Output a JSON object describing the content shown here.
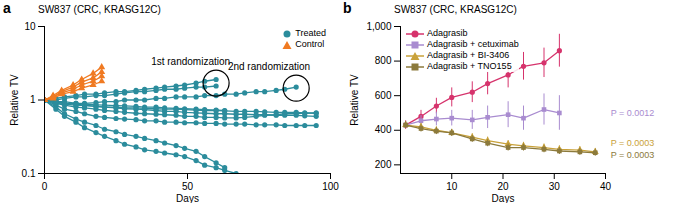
{
  "chart_data": [
    {
      "type": "line",
      "panel": "a",
      "title": "SW837 (CRC, KRASG12C)",
      "x_label": "Days",
      "y_label": "Relative TV",
      "log": "y",
      "legend": "top-right",
      "xlim": [
        0,
        100
      ],
      "xticks": [
        0,
        50,
        100
      ],
      "ylim": [
        0.1,
        10
      ],
      "yticks": [
        0.1,
        1,
        10
      ],
      "series": [
        {
          "name": "Treated",
          "color": "#2b8c9c",
          "marker": "circle",
          "x": [
            0,
            4,
            7,
            11,
            14,
            18,
            21,
            25,
            28,
            32,
            35,
            39,
            42,
            46,
            49,
            53,
            56,
            60
          ],
          "values": [
            1,
            1.05,
            1.1,
            1.15,
            1.2,
            1.2,
            1.25,
            1.3,
            1.3,
            1.35,
            1.4,
            1.45,
            1.5,
            1.55,
            1.6,
            1.7,
            1.8,
            1.9
          ]
        },
        {
          "name": "Treated",
          "color": "#2b8c9c",
          "marker": "circle",
          "x": [
            0,
            4,
            7,
            11,
            14,
            18,
            21,
            25,
            28,
            32,
            35,
            39,
            42,
            46,
            49,
            53,
            56,
            60
          ],
          "values": [
            1,
            1,
            1.05,
            1.1,
            1.1,
            1.15,
            1.15,
            1.2,
            1.25,
            1.3,
            1.3,
            1.35,
            1.4,
            1.4,
            1.45,
            1.5,
            1.5,
            1.55
          ]
        },
        {
          "name": "Treated",
          "color": "#2b8c9c",
          "marker": "circle",
          "x": [
            0,
            4,
            7,
            11,
            14,
            18,
            21,
            25,
            28,
            32,
            35,
            39,
            42,
            46,
            49,
            53,
            56,
            60,
            63,
            67,
            70,
            74,
            77,
            81,
            84,
            88
          ],
          "values": [
            1,
            0.95,
            0.95,
            0.9,
            0.9,
            0.92,
            0.95,
            0.95,
            1,
            1,
            1,
            1.05,
            1.05,
            1.1,
            1.1,
            1.1,
            1.15,
            1.15,
            1.2,
            1.2,
            1.25,
            1.3,
            1.3,
            1.35,
            1.4,
            1.5
          ]
        },
        {
          "name": "Treated",
          "color": "#2b8c9c",
          "marker": "circle",
          "x": [
            0,
            4,
            7,
            11,
            14,
            18,
            21,
            25,
            28,
            32,
            35,
            39,
            42,
            46,
            49,
            53,
            56,
            60,
            63,
            67,
            70,
            74,
            77,
            81,
            84,
            88,
            91,
            95
          ],
          "values": [
            1,
            0.95,
            0.9,
            0.88,
            0.85,
            0.82,
            0.8,
            0.78,
            0.76,
            0.75,
            0.74,
            0.72,
            0.7,
            0.7,
            0.68,
            0.67,
            0.66,
            0.65,
            0.65,
            0.64,
            0.64,
            0.63,
            0.63,
            0.62,
            0.62,
            0.62,
            0.61,
            0.6
          ]
        },
        {
          "name": "Treated",
          "color": "#2b8c9c",
          "marker": "circle",
          "x": [
            0,
            4,
            7,
            11,
            14,
            18,
            21,
            25,
            28,
            32,
            35,
            39,
            42,
            46,
            49,
            53,
            56,
            60,
            63,
            67,
            70,
            74,
            77,
            81,
            84,
            88,
            91,
            95
          ],
          "values": [
            1,
            0.9,
            0.85,
            0.8,
            0.78,
            0.75,
            0.72,
            0.7,
            0.68,
            0.66,
            0.65,
            0.64,
            0.63,
            0.62,
            0.6,
            0.6,
            0.58,
            0.58,
            0.57,
            0.57,
            0.58,
            0.6,
            0.62,
            0.63,
            0.65,
            0.66,
            0.66,
            0.67
          ]
        },
        {
          "name": "Treated",
          "color": "#2b8c9c",
          "marker": "circle",
          "x": [
            0,
            4,
            7,
            11,
            14,
            18,
            21,
            25,
            28,
            32,
            35,
            39,
            42,
            46,
            49,
            53,
            56,
            60,
            63,
            67,
            70,
            74,
            77,
            81,
            84,
            88,
            91,
            95
          ],
          "values": [
            1,
            0.85,
            0.75,
            0.7,
            0.65,
            0.6,
            0.58,
            0.56,
            0.55,
            0.54,
            0.52,
            0.52,
            0.5,
            0.5,
            0.49,
            0.49,
            0.48,
            0.48,
            0.47,
            0.47,
            0.47,
            0.46,
            0.46,
            0.46,
            0.45,
            0.45,
            0.45,
            0.45
          ]
        },
        {
          "name": "Treated",
          "color": "#2b8c9c",
          "marker": "circle",
          "x": [
            0,
            4,
            7,
            11,
            14,
            18,
            21,
            25,
            28,
            32,
            35,
            39,
            42,
            46,
            49,
            53,
            56,
            60,
            63
          ],
          "values": [
            1,
            0.8,
            0.65,
            0.55,
            0.5,
            0.45,
            0.4,
            0.37,
            0.34,
            0.32,
            0.3,
            0.28,
            0.26,
            0.24,
            0.22,
            0.2,
            0.17,
            0.14,
            0.12
          ]
        },
        {
          "name": "Treated",
          "color": "#2b8c9c",
          "marker": "circle",
          "x": [
            0,
            4,
            7,
            11,
            14,
            18,
            21,
            25,
            28,
            32,
            35,
            39,
            42,
            46,
            49,
            53,
            56,
            60,
            63,
            67
          ],
          "values": [
            1,
            0.75,
            0.6,
            0.5,
            0.42,
            0.36,
            0.32,
            0.28,
            0.25,
            0.23,
            0.21,
            0.2,
            0.19,
            0.18,
            0.17,
            0.15,
            0.13,
            0.12,
            0.11,
            0.1
          ]
        },
        {
          "name": "Treated",
          "color": "#2b8c9c",
          "marker": "circle",
          "x": [
            0,
            4,
            7,
            11,
            14,
            18,
            21,
            25,
            28,
            32,
            35,
            39,
            42,
            46,
            49,
            53,
            56,
            60,
            63
          ],
          "values": [
            1,
            0.95,
            0.9,
            0.9,
            0.88,
            0.86,
            0.85,
            0.84,
            0.83,
            0.82,
            0.8,
            0.8,
            0.78,
            0.77,
            0.76,
            0.75,
            0.74,
            0.73,
            0.72
          ]
        },
        {
          "name": "Treated",
          "color": "#2b8c9c",
          "marker": "circle",
          "x": [
            0,
            4,
            7,
            11,
            14,
            18,
            21,
            25,
            28,
            32,
            35,
            39,
            42,
            46,
            49,
            53,
            56,
            60,
            63,
            67,
            70,
            74,
            77,
            81,
            84,
            88,
            91,
            95
          ],
          "values": [
            1,
            0.9,
            0.88,
            0.85,
            0.84,
            0.82,
            0.8,
            0.8,
            0.78,
            0.78,
            0.77,
            0.76,
            0.75,
            0.75,
            0.74,
            0.73,
            0.72,
            0.72,
            0.71,
            0.7,
            0.7,
            0.7,
            0.69,
            0.68,
            0.68,
            0.68,
            0.67,
            0.66
          ]
        },
        {
          "name": "Control",
          "color": "#f07a22",
          "marker": "triangle",
          "x": [
            0,
            3,
            6,
            10,
            13,
            17,
            20
          ],
          "values": [
            1,
            1.15,
            1.35,
            1.6,
            1.9,
            2.3,
            2.8
          ]
        },
        {
          "name": "Control",
          "color": "#f07a22",
          "marker": "triangle",
          "x": [
            0,
            3,
            6,
            10,
            13,
            17,
            20
          ],
          "values": [
            1,
            1.1,
            1.3,
            1.5,
            1.75,
            2.0,
            2.4
          ]
        },
        {
          "name": "Control",
          "color": "#f07a22",
          "marker": "triangle",
          "x": [
            0,
            3,
            6,
            10,
            13,
            17,
            20
          ],
          "values": [
            1,
            1.1,
            1.25,
            1.4,
            1.6,
            1.8,
            2.1
          ]
        },
        {
          "name": "Control",
          "color": "#f07a22",
          "marker": "triangle",
          "x": [
            0,
            3,
            6,
            10,
            13,
            17,
            20
          ],
          "values": [
            1,
            1.05,
            1.2,
            1.3,
            1.45,
            1.6,
            1.8
          ]
        }
      ],
      "annotations": [
        {
          "text": "1st randomization",
          "x": 60,
          "y": 1.7
        },
        {
          "text": "2nd randomization",
          "x": 88,
          "y": 1.45
        }
      ]
    },
    {
      "type": "line",
      "panel": "b",
      "title": "SW837 (CRC, KRASG12C)",
      "x_label": "Days",
      "y_label": "Relative TV",
      "legend": "top-left",
      "xlim": [
        0,
        40
      ],
      "xticks": [
        10,
        20,
        30,
        40
      ],
      "ylim": [
        150,
        1000
      ],
      "yticks": [
        200,
        400,
        600,
        800,
        {
          "value": 1000,
          "label": "1,000"
        }
      ],
      "series": [
        {
          "name": "Adagrasib",
          "color": "#d6336c",
          "marker": "circle",
          "x": [
            1,
            4,
            7,
            10,
            14,
            17,
            21,
            24,
            28,
            31
          ],
          "values": [
            430,
            480,
            540,
            590,
            620,
            670,
            720,
            770,
            790,
            860
          ],
          "errors": [
            25,
            35,
            45,
            55,
            60,
            65,
            75,
            80,
            85,
            95
          ]
        },
        {
          "name": "Adagrasib + cetuximab",
          "color": "#a98cd0",
          "marker": "square",
          "x": [
            1,
            4,
            7,
            10,
            14,
            17,
            21,
            24,
            28,
            31
          ],
          "values": [
            430,
            455,
            465,
            470,
            460,
            475,
            490,
            470,
            520,
            500
          ],
          "errors": [
            20,
            30,
            40,
            45,
            55,
            65,
            75,
            70,
            90,
            100
          ]
        },
        {
          "name": "Adagrasib + BI-3406",
          "color": "#c9a23a",
          "marker": "triangle",
          "x": [
            1,
            4,
            7,
            10,
            14,
            17,
            21,
            24,
            28,
            31,
            35,
            38
          ],
          "values": [
            430,
            420,
            400,
            385,
            360,
            340,
            320,
            310,
            300,
            290,
            285,
            275
          ],
          "errors": [
            20,
            20,
            20,
            20,
            20,
            20,
            20,
            20,
            20,
            20,
            20,
            20
          ]
        },
        {
          "name": "Adagrasib + TNO155",
          "color": "#8c7a3c",
          "marker": "square",
          "x": [
            1,
            4,
            7,
            10,
            14,
            17,
            21,
            24,
            28,
            31,
            35,
            38
          ],
          "values": [
            430,
            410,
            395,
            385,
            350,
            325,
            300,
            300,
            290,
            280,
            275,
            270
          ],
          "errors": [
            20,
            20,
            20,
            20,
            20,
            20,
            20,
            20,
            20,
            20,
            20,
            20
          ]
        }
      ],
      "annotations": [
        {
          "text": "P = 0.0012",
          "x": 41,
          "y": 500,
          "color": "#a98cd0"
        },
        {
          "text": "P = 0.0003",
          "x": 41,
          "y": 325,
          "color": "#c9a23a"
        },
        {
          "text": "P = 0.0003",
          "x": 41,
          "y": 255,
          "color": "#8c7a3c"
        }
      ]
    }
  ]
}
